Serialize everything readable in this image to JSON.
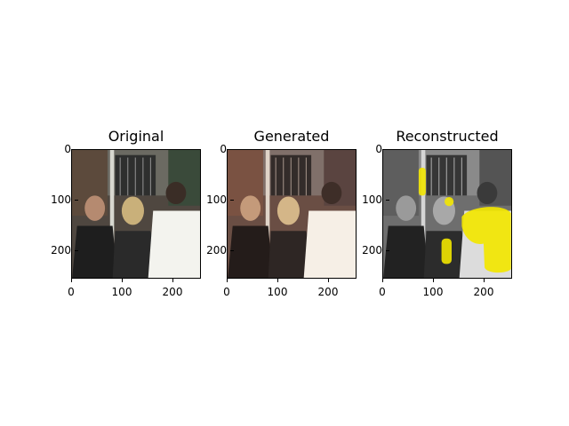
{
  "panels": [
    {
      "title": "Original",
      "x_ticks": [
        "0",
        "100",
        "200"
      ],
      "y_ticks": [
        "0",
        "100",
        "200"
      ]
    },
    {
      "title": "Generated",
      "x_ticks": [
        "0",
        "100",
        "200"
      ],
      "y_ticks": [
        "0",
        "100",
        "200"
      ]
    },
    {
      "title": "Reconstructed",
      "x_ticks": [
        "0",
        "100",
        "200"
      ],
      "y_ticks": [
        "0",
        "100",
        "200"
      ]
    }
  ],
  "colors": {
    "background": "#ffffff",
    "highlight": "#f2e600",
    "wall_original": "#5a5248",
    "wall_generated": "#6a4e44",
    "wall_grey": "#7a7a7a"
  }
}
